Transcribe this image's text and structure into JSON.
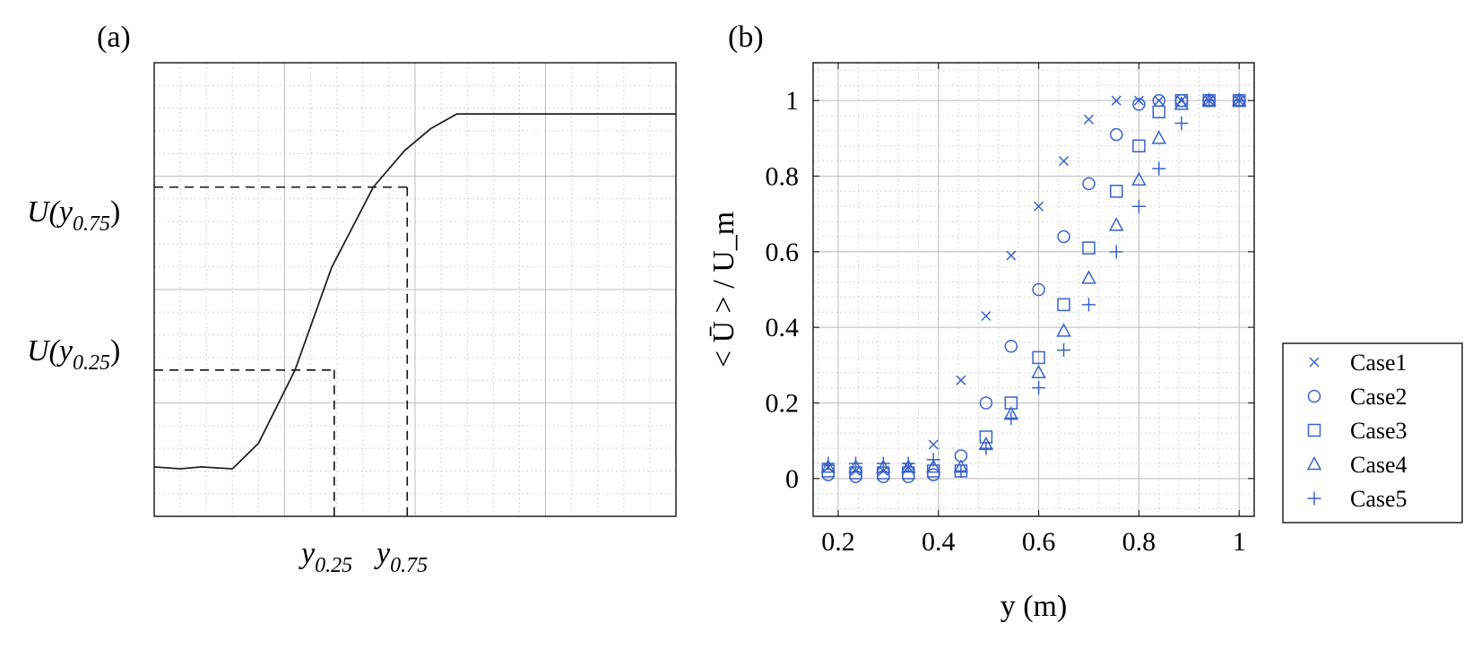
{
  "chart_data": [
    {
      "panel": "(a)",
      "type": "line",
      "title": "",
      "xlabel": "",
      "ylabel": "",
      "x_annotations": [
        "y",
        "0.25",
        "y",
        "0.75"
      ],
      "y_annotations": [
        {
          "base": "U(y",
          "sub": "0.75",
          "close": ")"
        },
        {
          "base": "U(y",
          "sub": "0.25",
          "close": ")"
        }
      ],
      "x": [
        0,
        0.05,
        0.09,
        0.15,
        0.2,
        0.27,
        0.34,
        0.42,
        0.48,
        0.53,
        0.58,
        0.65,
        1.0
      ],
      "y": [
        0.135,
        0.13,
        0.135,
        0.13,
        0.2,
        0.4,
        0.68,
        0.9,
        1.0,
        1.06,
        1.1,
        1.1,
        1.1
      ],
      "xlim": [
        0,
        1
      ],
      "ylim": [
        0,
        1.24
      ],
      "reference_lines": {
        "x_025": 0.345,
        "x_075": 0.485,
        "u_025": 0.4,
        "u_075": 0.9
      },
      "grid": true
    },
    {
      "panel": "(b)",
      "type": "scatter",
      "title": "",
      "xlabel": "y (m)",
      "ylabel": "< Ū > / U_m",
      "xlim": [
        0.15,
        1.03
      ],
      "ylim": [
        -0.1,
        1.1
      ],
      "xticks": [
        "0.2",
        "0.4",
        "0.6",
        "0.8",
        "1"
      ],
      "yticks": [
        "0",
        "0.2",
        "0.4",
        "0.6",
        "0.8",
        "1"
      ],
      "x": [
        0.18,
        0.235,
        0.29,
        0.34,
        0.39,
        0.445,
        0.495,
        0.545,
        0.6,
        0.65,
        0.7,
        0.755,
        0.8,
        0.84,
        0.885,
        0.94,
        1.0
      ],
      "series": [
        {
          "name": "Case1",
          "marker": "x",
          "values": [
            0.03,
            0.02,
            0.02,
            0.03,
            0.09,
            0.26,
            0.43,
            0.59,
            0.72,
            0.84,
            0.95,
            1.0,
            1.0,
            1.0,
            1.0,
            1.0,
            1.0
          ]
        },
        {
          "name": "Case2",
          "marker": "circle",
          "values": [
            0.01,
            0.005,
            0.005,
            0.005,
            0.01,
            0.06,
            0.2,
            0.35,
            0.5,
            0.64,
            0.78,
            0.91,
            0.99,
            1.0,
            1.0,
            1.0,
            1.0
          ]
        },
        {
          "name": "Case3",
          "marker": "square",
          "values": [
            0.02,
            0.015,
            0.015,
            0.015,
            0.02,
            0.02,
            0.11,
            0.2,
            0.32,
            0.46,
            0.61,
            0.76,
            0.88,
            0.97,
            1.0,
            1.0,
            1.0
          ]
        },
        {
          "name": "Case4",
          "marker": "triangle",
          "values": [
            0.03,
            0.03,
            0.03,
            0.03,
            0.03,
            0.03,
            0.09,
            0.17,
            0.28,
            0.39,
            0.53,
            0.67,
            0.79,
            0.9,
            0.99,
            1.0,
            1.0
          ]
        },
        {
          "name": "Case5",
          "marker": "plus",
          "values": [
            0.04,
            0.04,
            0.04,
            0.04,
            0.05,
            0.02,
            0.08,
            0.16,
            0.24,
            0.34,
            0.46,
            0.6,
            0.72,
            0.82,
            0.94,
            1.0,
            1.0
          ]
        }
      ],
      "legend_position": "right",
      "marker_color": "#3a62c9",
      "grid": true
    }
  ]
}
